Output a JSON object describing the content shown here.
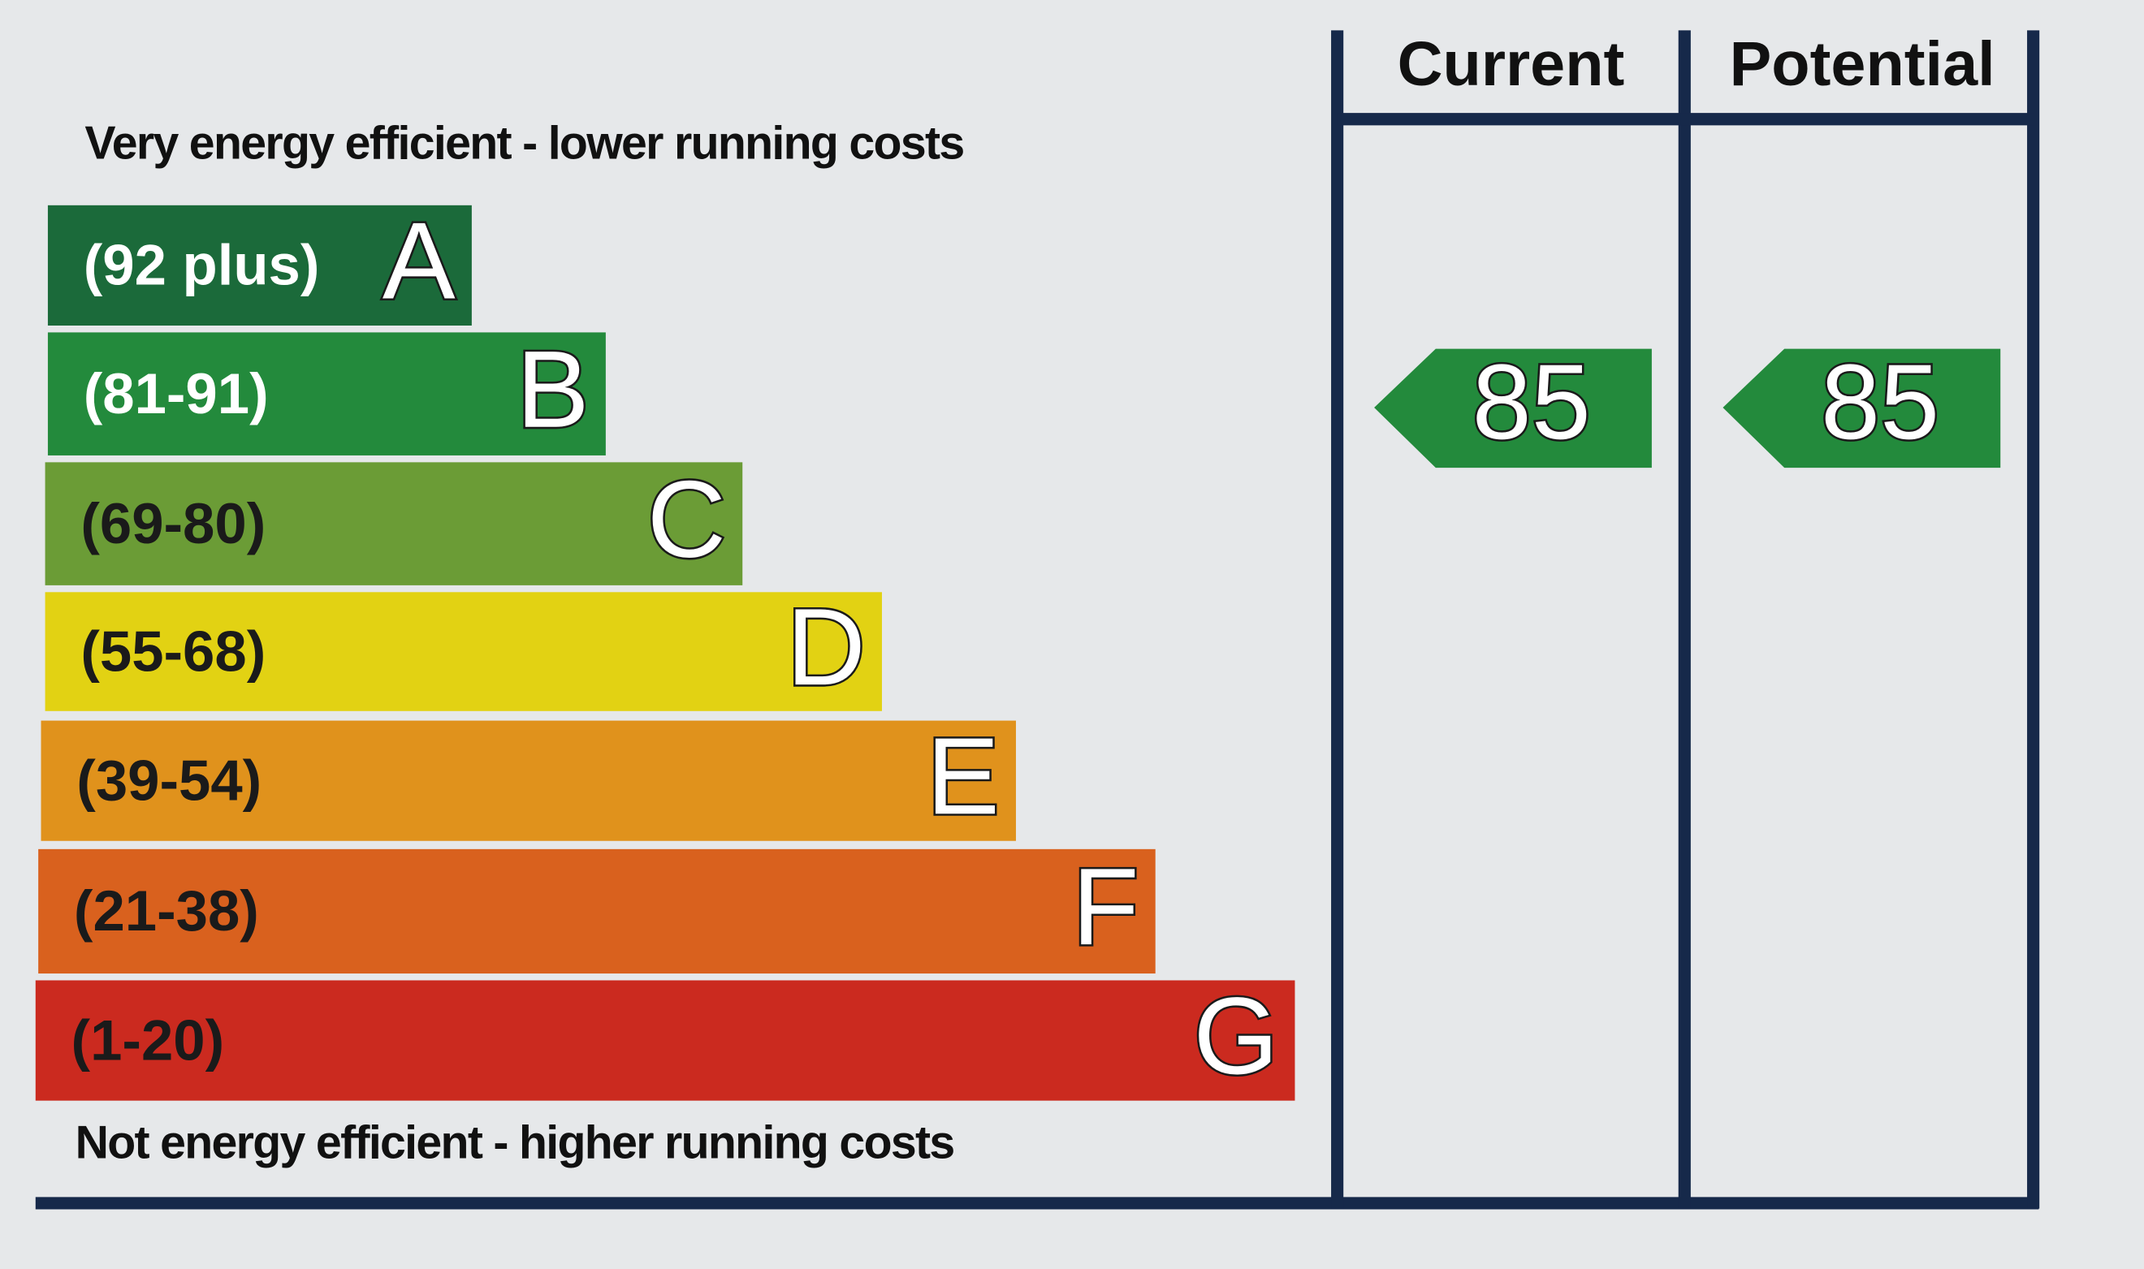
{
  "header": {
    "top_note": "Very energy efficient - lower running costs",
    "bottom_note": "Not energy efficient - higher running costs",
    "columns": [
      "Current",
      "Potential"
    ]
  },
  "bands": [
    {
      "range": "(92 plus)",
      "letter": "A"
    },
    {
      "range": "(81-91)",
      "letter": "B"
    },
    {
      "range": "(69-80)",
      "letter": "C"
    },
    {
      "range": "(55-68)",
      "letter": "D"
    },
    {
      "range": "(39-54)",
      "letter": "E"
    },
    {
      "range": "(21-38)",
      "letter": "F"
    },
    {
      "range": "(1-20)",
      "letter": "G"
    }
  ],
  "ratings": {
    "current": 85,
    "potential": 85
  }
}
